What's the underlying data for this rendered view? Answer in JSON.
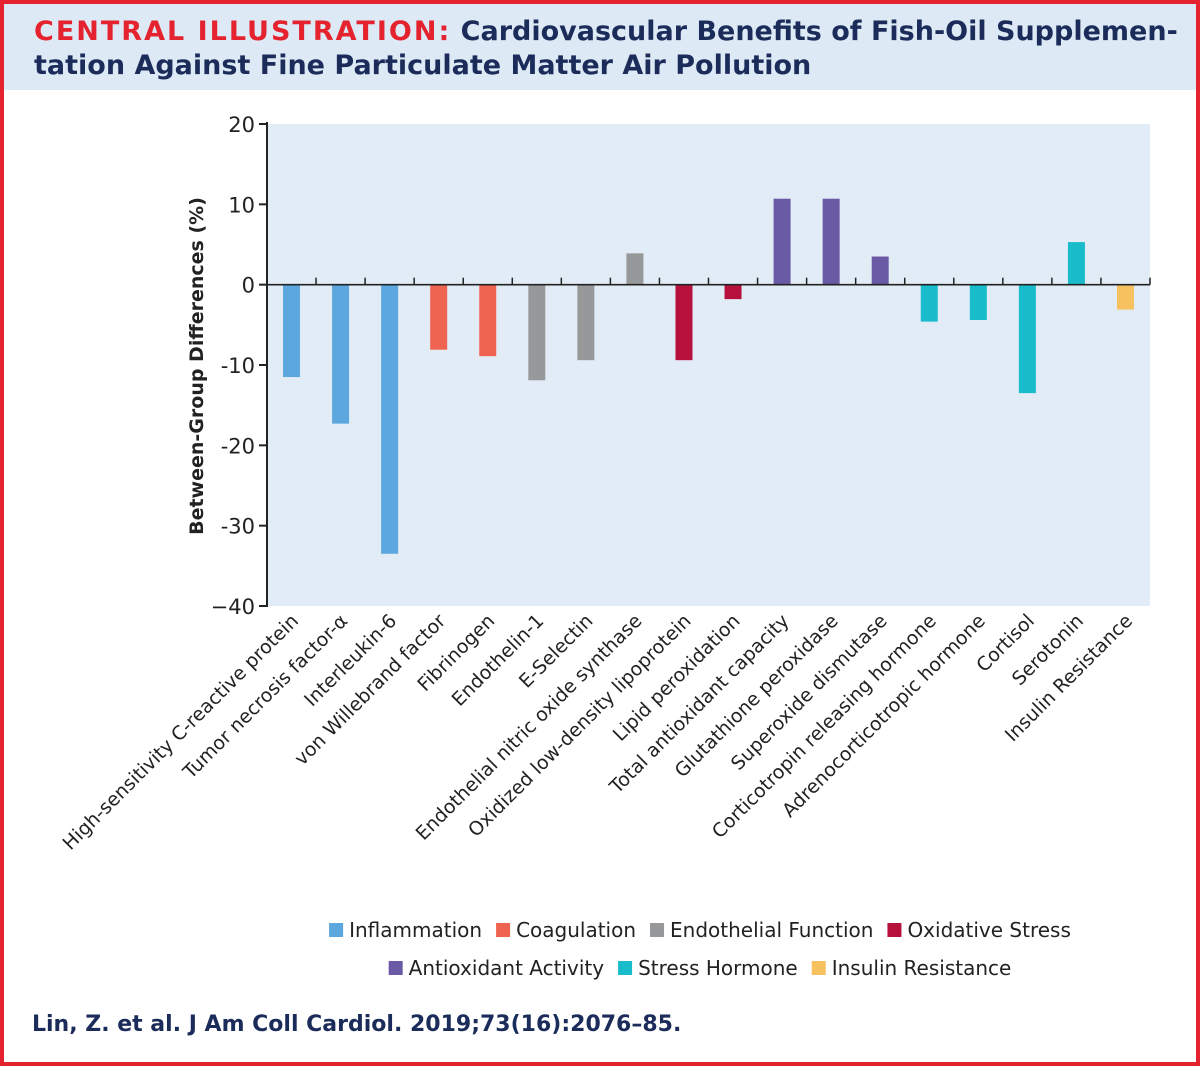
{
  "header": {
    "title_prefix": "CENTRAL ILLUSTRATION:",
    "title_line1": "Cardiovascular Benefits of Fish-Oil Supplemen-",
    "title_line2": "tation Against Fine Particulate Matter Air Pollution"
  },
  "chart_data": {
    "type": "bar",
    "title": "",
    "xlabel": "",
    "ylabel": "Between-Group Differences (%)",
    "ylim": [
      -40,
      20
    ],
    "yticks": [
      20,
      10,
      0,
      -10,
      -20,
      -30,
      -40
    ],
    "ytick_labels": [
      "20",
      "10",
      "0",
      "-10",
      "-20",
      "-30",
      "−40"
    ],
    "grid": false,
    "legend_position": "bottom",
    "categories": [
      "High-sensitivity C-reactive protein",
      "Tumor necrosis factor-α",
      "Interleukin-6",
      "von Willebrand factor",
      "Fibrinogen",
      "Endothelin-1",
      "E-Selectin",
      "Endothelial nitric oxide synthase",
      "Oxidized low-density lipoprotein",
      "Lipid peroxidation",
      "Total antioxidant capacity",
      "Glutathione peroxidase",
      "Superoxide dismutase",
      "Corticotropin releasing hormone",
      "Adrenocorticotropic hormone",
      "Cortisol",
      "Serotonin",
      "Insulin Resistance"
    ],
    "values": [
      -11.5,
      -17.3,
      -33.5,
      -8.1,
      -8.9,
      -11.9,
      -9.4,
      3.9,
      -9.4,
      -1.8,
      10.7,
      10.7,
      3.5,
      -4.6,
      -4.4,
      -13.5,
      5.3,
      -3.1
    ],
    "groups": [
      "Inflammation",
      "Inflammation",
      "Inflammation",
      "Coagulation",
      "Coagulation",
      "Endothelial Function",
      "Endothelial Function",
      "Endothelial Function",
      "Oxidative Stress",
      "Oxidative Stress",
      "Antioxidant Activity",
      "Antioxidant Activity",
      "Antioxidant Activity",
      "Stress Hormone",
      "Stress Hormone",
      "Stress Hormone",
      "Stress Hormone",
      "Insulin Resistance"
    ],
    "legend": [
      {
        "name": "Inflammation",
        "color": "#5ba7de"
      },
      {
        "name": "Coagulation",
        "color": "#ef6450"
      },
      {
        "name": "Endothelial Function",
        "color": "#979899"
      },
      {
        "name": "Oxidative Stress",
        "color": "#b5113c"
      },
      {
        "name": "Antioxidant Activity",
        "color": "#6a5aa6"
      },
      {
        "name": "Stress Hormone",
        "color": "#18bccb"
      },
      {
        "name": "Insulin Resistance",
        "color": "#f7c15f"
      }
    ],
    "plot_background": "#e2ecf7"
  },
  "citation": "Lin, Z. et al. J Am Coll Cardiol. 2019;73(16):2076–85."
}
